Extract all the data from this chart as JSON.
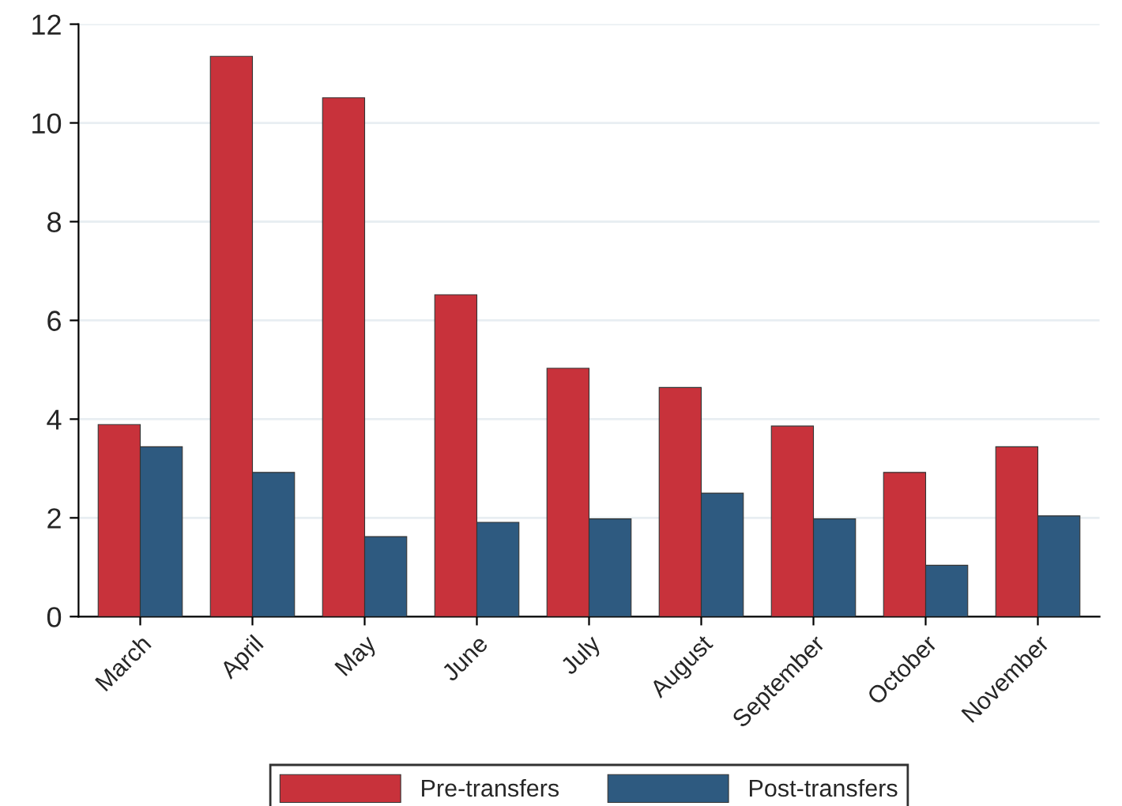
{
  "chart_data": {
    "type": "bar",
    "categories": [
      "March",
      "April",
      "May",
      "June",
      "July",
      "August",
      "September",
      "October",
      "November"
    ],
    "series": [
      {
        "name": "Pre-transfers",
        "color": "#c8323b",
        "values": [
          3.89,
          11.35,
          10.51,
          6.52,
          5.03,
          4.64,
          3.86,
          2.92,
          3.44
        ]
      },
      {
        "name": "Post-transfers",
        "color": "#2e5a80",
        "values": [
          3.44,
          2.92,
          1.62,
          1.91,
          1.98,
          2.5,
          1.98,
          1.04,
          2.04
        ]
      }
    ],
    "ylim": [
      0,
      12
    ],
    "yticks": [
      0,
      2,
      4,
      6,
      8,
      10,
      12
    ],
    "grid": "y",
    "legend": "bottom"
  }
}
